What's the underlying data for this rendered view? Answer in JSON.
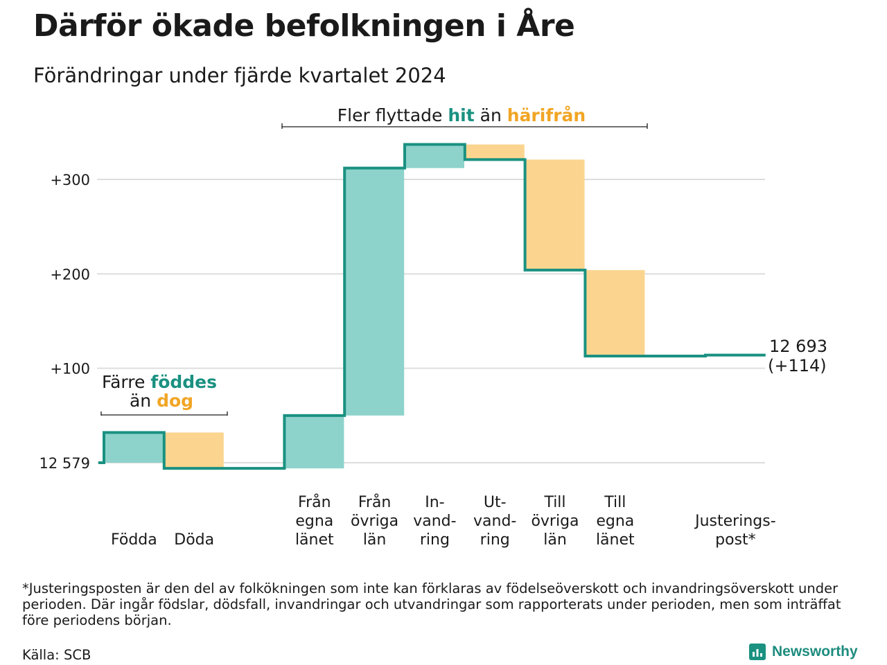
{
  "header": {
    "title": "Därför ökade befolkningen i Åre",
    "subtitle": "Förändringar under fjärde kvartalet 2024"
  },
  "colors": {
    "increase": "#8dd3cb",
    "decrease": "#fbd58f",
    "line": "#1a9181",
    "accent_increase": "#1a9181",
    "accent_decrease": "#f1a525",
    "grid": "#dddddd"
  },
  "chart_data": {
    "type": "waterfall",
    "start_value": 12579,
    "end_value": 12693,
    "end_label_line1": "12 693",
    "end_label_line2": "(+114)",
    "ylim": [
      -5,
      340
    ],
    "ytick_values": [
      0,
      100,
      200,
      300
    ],
    "ytick_labels": [
      "12 579",
      "+100",
      "+200",
      "+300"
    ],
    "steps": [
      {
        "label": [
          "Födda"
        ],
        "change": 32
      },
      {
        "label": [
          "Döda"
        ],
        "change": -38
      },
      {
        "label": [
          ""
        ],
        "change": 0
      },
      {
        "label": [
          "Från",
          "egna",
          "länet"
        ],
        "change": 56
      },
      {
        "label": [
          "Från",
          "övriga",
          "län"
        ],
        "change": 262
      },
      {
        "label": [
          "In-",
          "vand-",
          "ring"
        ],
        "change": 25
      },
      {
        "label": [
          "Ut-",
          "vand-",
          "ring"
        ],
        "change": -16
      },
      {
        "label": [
          "Till",
          "övriga",
          "län"
        ],
        "change": -117
      },
      {
        "label": [
          "Till",
          "egna",
          "länet"
        ],
        "change": -91
      },
      {
        "label": [
          ""
        ],
        "change": 0
      },
      {
        "label": [
          "Justerings-",
          "post*"
        ],
        "change": 1
      }
    ],
    "annotations": [
      {
        "id": "births",
        "parts": [
          [
            "Färre ",
            "plain"
          ],
          [
            "föddes",
            "inc"
          ]
        ],
        "parts2": [
          [
            "än ",
            "plain"
          ],
          [
            "dog",
            "dec"
          ]
        ]
      },
      {
        "id": "migration",
        "parts": [
          [
            "Fler flyttade ",
            "plain"
          ],
          [
            "hit",
            "inc"
          ],
          [
            " än ",
            "plain"
          ],
          [
            "härifrån",
            "dec"
          ]
        ]
      }
    ]
  },
  "footer": {
    "footnote": "*Justeringsposten är den del av folkökningen som inte kan förklaras av födelseöverskott och invandringsöverskott under perioden. Där ingår födslar, dödsfall, invandringar och utvandringar som rapporterats under perioden, men som inträffat före periodens början.",
    "source": "Källa: SCB",
    "logo_text": "Newsworthy"
  }
}
